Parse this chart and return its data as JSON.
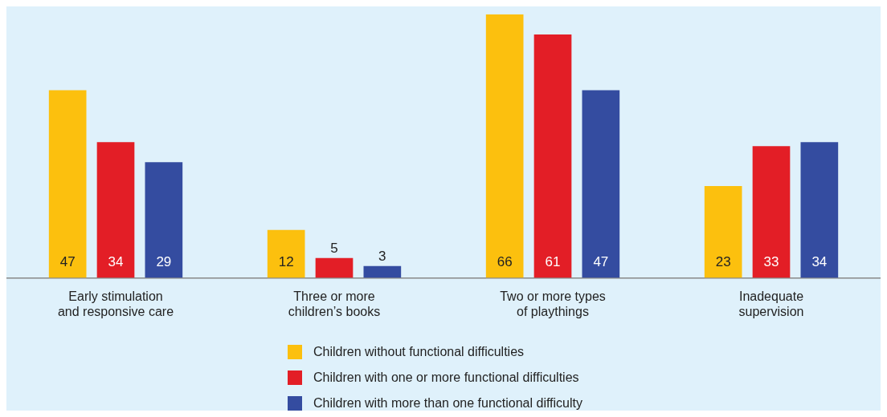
{
  "chart_data": {
    "type": "bar",
    "categories": [
      "Early stimulation and responsive care",
      "Three or more children’s books",
      "Two or more types of playthings",
      "Inadequate supervision"
    ],
    "series": [
      {
        "name": "Children without functional difficulties",
        "color": "#fcc00e",
        "values": [
          47,
          12,
          66,
          23
        ]
      },
      {
        "name": "Children with one or more functional difficulties",
        "color": "#e31e26",
        "values": [
          34,
          5,
          61,
          33
        ]
      },
      {
        "name": "Children with more than one functional difficulty",
        "color": "#344ca0",
        "values": [
          29,
          3,
          47,
          34
        ]
      }
    ],
    "data_labels": true,
    "grid": false,
    "legend": "bottom"
  }
}
